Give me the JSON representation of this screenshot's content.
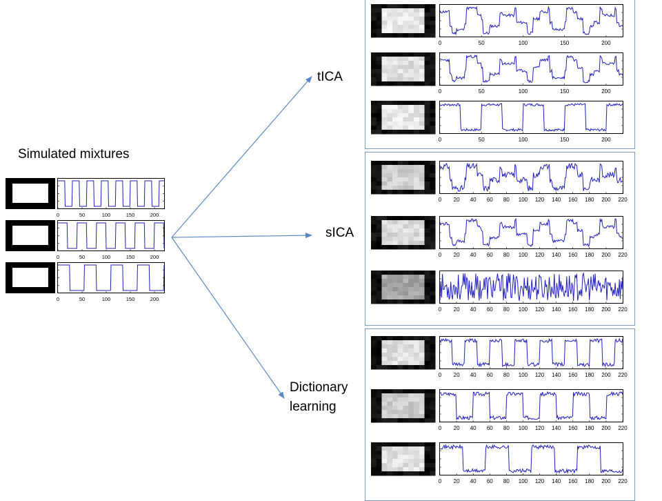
{
  "title": "Simulated mixtures",
  "methods": [
    {
      "label": "tICA"
    },
    {
      "label": "sICA"
    },
    {
      "label": "Dictionary learning"
    }
  ],
  "colors": {
    "signal": "#1f1fbf",
    "arrow": "#5b87c5",
    "panel_border": "#7f9bc2"
  },
  "mixtures": {
    "ticks": [
      "0",
      "50",
      "100",
      "150",
      "200"
    ],
    "signals": [
      {
        "period": 30,
        "duty": 0.5
      },
      {
        "period": 40,
        "duty": 0.5
      },
      {
        "period": 55,
        "duty": 0.45
      }
    ]
  },
  "results": [
    {
      "method": "tICA",
      "ticks": [
        "0",
        "50",
        "100",
        "150",
        "200"
      ],
      "components": [
        {
          "kind": "mixed",
          "noise": 0.06,
          "seed": 11,
          "image_level": 0.9
        },
        {
          "kind": "mixed",
          "noise": 0.06,
          "seed": 23,
          "image_level": 0.88
        },
        {
          "kind": "square",
          "period": 50,
          "noise": 0.05,
          "seed": 7,
          "image_level": 0.9
        }
      ]
    },
    {
      "method": "sICA",
      "ticks": [
        "0",
        "20",
        "40",
        "60",
        "80",
        "100",
        "120",
        "140",
        "160",
        "180",
        "200",
        "220"
      ],
      "components": [
        {
          "kind": "mixed2",
          "noise": 0.12,
          "seed": 31,
          "image_level": 0.82
        },
        {
          "kind": "mixed",
          "noise": 0.07,
          "seed": 41,
          "image_level": 0.86
        },
        {
          "kind": "noise",
          "noise": 0.45,
          "seed": 53,
          "image_level": 0.65
        }
      ]
    },
    {
      "method": "Dictionary learning",
      "ticks": [
        "0",
        "20",
        "40",
        "60",
        "80",
        "100",
        "120",
        "140",
        "160",
        "180",
        "200",
        "220"
      ],
      "components": [
        {
          "kind": "square",
          "period": 30,
          "noise": 0.08,
          "seed": 61,
          "image_level": 0.88
        },
        {
          "kind": "square",
          "period": 40,
          "noise": 0.08,
          "seed": 67,
          "image_level": 0.8
        },
        {
          "kind": "square",
          "period": 55,
          "noise": 0.08,
          "seed": 71,
          "image_level": 0.88
        }
      ]
    }
  ]
}
